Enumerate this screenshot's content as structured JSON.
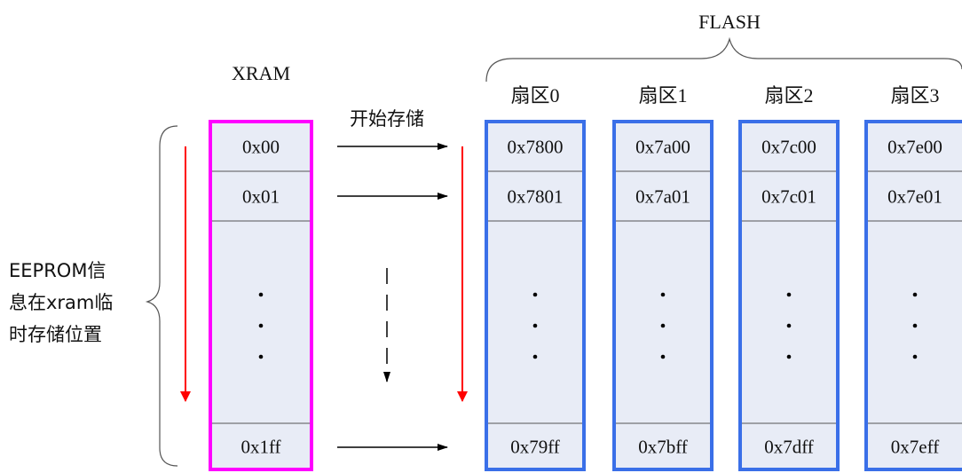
{
  "flash_label": "FLASH",
  "xram_label": "XRAM",
  "start_label": "开始存储",
  "side_label_lines": [
    "EEPROM信",
    "息在xram临",
    "时存储位置"
  ],
  "xram": {
    "addr_first": "0x00",
    "addr_second": "0x01",
    "addr_last": "0x1ff"
  },
  "sectors": [
    {
      "label": "扇区0",
      "addr_first": "0x7800",
      "addr_second": "0x7801",
      "addr_last": "0x79ff"
    },
    {
      "label": "扇区1",
      "addr_first": "0x7a00",
      "addr_second": "0x7a01",
      "addr_last": "0x7bff"
    },
    {
      "label": "扇区2",
      "addr_first": "0x7c00",
      "addr_second": "0x7c01",
      "addr_last": "0x7dff"
    },
    {
      "label": "扇区3",
      "addr_first": "0x7e00",
      "addr_second": "0x7e01",
      "addr_last": "0x7eff"
    }
  ],
  "colors": {
    "xram_border": "#ff00ff",
    "flash_border": "#3a6fe8",
    "cell_fill": "#e8ecf6",
    "arrow_red": "#ff0000"
  }
}
